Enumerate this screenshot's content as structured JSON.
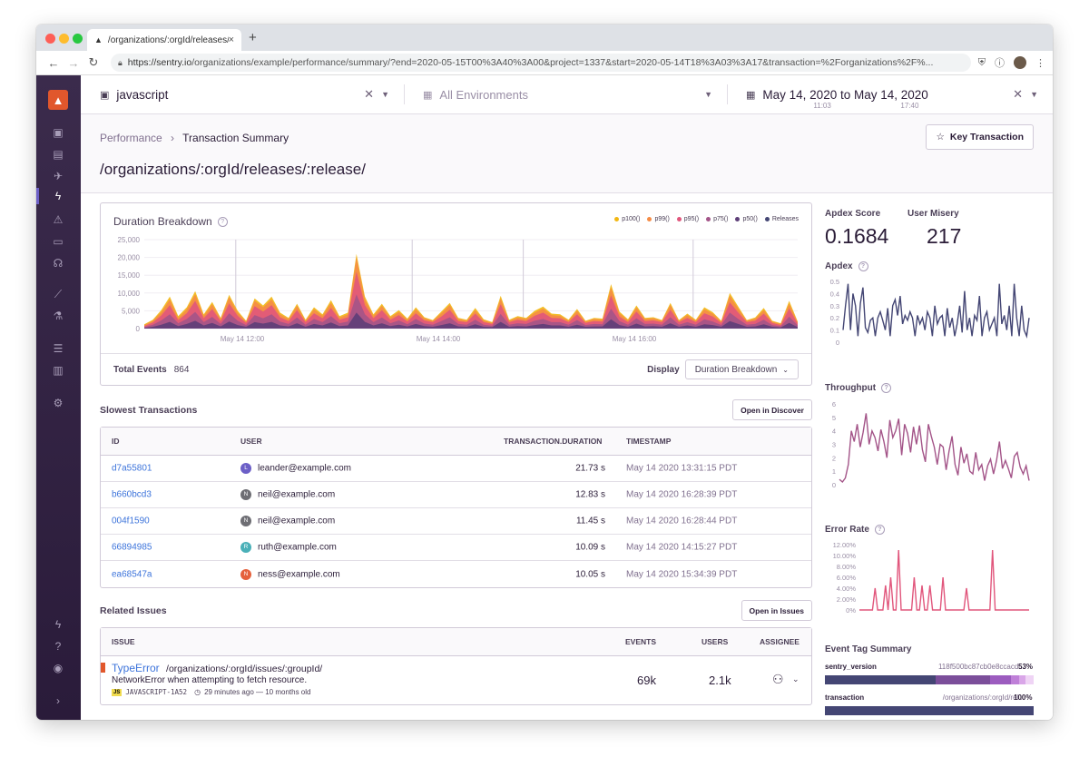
{
  "browser": {
    "tab_title": "/organizations/:orgId/releases/:",
    "url_host": "https://sentry.io",
    "url_path": "/organizations/example/performance/summary/?end=2020-05-15T00%3A40%3A00&project=1337&start=2020-05-14T18%3A03%3A17&transaction=%2Forganizations%2F%..."
  },
  "topbar": {
    "project": "javascript",
    "environment": "All Environments",
    "date_range": "May 14, 2020 to May 14, 2020",
    "time_start": "11:03",
    "time_end": "17:40"
  },
  "header": {
    "crumb_root": "Performance",
    "crumb_current": "Transaction Summary",
    "title": "/organizations/:orgId/releases/:release/",
    "key_button": "Key Transaction"
  },
  "duration_panel": {
    "title": "Duration Breakdown",
    "legend": [
      {
        "name": "p100()",
        "color": "#f2b712"
      },
      {
        "name": "p99()",
        "color": "#f58c46"
      },
      {
        "name": "p95()",
        "color": "#e1567c"
      },
      {
        "name": "p75()",
        "color": "#a35488"
      },
      {
        "name": "p50()",
        "color": "#5d3e78"
      },
      {
        "name": "Releases",
        "color": "#444674"
      }
    ],
    "total_events_label": "Total Events",
    "total_events_value": "864",
    "display_label": "Display",
    "display_value": "Duration Breakdown"
  },
  "chart_data": [
    {
      "type": "area",
      "title": "Duration Breakdown",
      "xlabel": "",
      "ylabel": "",
      "ylim": [
        0,
        25000
      ],
      "y_ticks": [
        "25,000",
        "20,000",
        "15,000",
        "10,000",
        "5,000",
        "0"
      ],
      "x_ticks": [
        "May 14 12:00",
        "May 14 14:00",
        "May 14 16:00"
      ],
      "series": [
        {
          "name": "p100()",
          "values": [
            1200,
            2500,
            5200,
            9000,
            3500,
            6000,
            10500,
            4000,
            7500,
            3000,
            9500,
            5000,
            2200,
            8500,
            6500,
            9000,
            4500,
            3000,
            7000,
            2500,
            6000,
            4000,
            8000,
            3500,
            4500,
            21000,
            9000,
            4000,
            7000,
            3500,
            5200,
            2800,
            6000,
            3200,
            2400,
            4800,
            7200,
            3000,
            2500,
            5800,
            2600,
            1800,
            9200,
            2500,
            3500,
            3000,
            5000,
            6200,
            4200,
            4000,
            2500,
            5500,
            2200,
            3000,
            2800,
            12500,
            4800,
            2600,
            6500,
            3000,
            3200,
            2400,
            7200,
            2400,
            4200,
            2500,
            6000,
            4600,
            2200,
            10000,
            6200,
            2400,
            3100,
            5800,
            2200,
            1500,
            7800,
            2000
          ]
        },
        {
          "name": "p99()",
          "values": [
            1000,
            2200,
            4600,
            8200,
            3000,
            5400,
            9600,
            3600,
            6800,
            2700,
            8800,
            4500,
            2000,
            7800,
            6000,
            8200,
            4000,
            2700,
            6400,
            2200,
            5400,
            3600,
            7200,
            3100,
            4000,
            20000,
            8200,
            3600,
            6400,
            3100,
            4700,
            2500,
            5400,
            2900,
            2200,
            4300,
            6600,
            2700,
            2200,
            5200,
            2300,
            1600,
            8400,
            2200,
            3100,
            2700,
            4500,
            5600,
            3800,
            3600,
            2200,
            5000,
            2000,
            2700,
            2500,
            11500,
            4300,
            2300,
            5900,
            2700,
            2900,
            2200,
            6600,
            2200,
            3800,
            2200,
            5400,
            4200,
            2000,
            9200,
            5600,
            2200,
            2800,
            5200,
            2000,
            1300,
            7000,
            1800
          ]
        },
        {
          "name": "p95()",
          "values": [
            700,
            1700,
            3700,
            6600,
            2400,
            4300,
            7800,
            2900,
            5500,
            2100,
            7100,
            3600,
            1600,
            6300,
            4800,
            6600,
            3200,
            2100,
            5200,
            1800,
            4300,
            2900,
            5800,
            2500,
            3200,
            16000,
            6600,
            2900,
            5200,
            2500,
            3800,
            2000,
            4300,
            2300,
            1800,
            3400,
            5300,
            2100,
            1800,
            4200,
            1800,
            1300,
            6800,
            1800,
            2500,
            2100,
            3600,
            4500,
            3000,
            2900,
            1800,
            4000,
            1600,
            2100,
            2000,
            9300,
            3400,
            1800,
            4800,
            2100,
            2300,
            1800,
            5300,
            1800,
            3000,
            1800,
            4300,
            3400,
            1600,
            7400,
            4500,
            1800,
            2200,
            4200,
            1600,
            1000,
            5600,
            1400
          ]
        },
        {
          "name": "p75()",
          "values": [
            400,
            1100,
            2300,
            4000,
            1500,
            2700,
            4700,
            1800,
            3300,
            1300,
            4300,
            2200,
            1000,
            3800,
            2900,
            4000,
            2000,
            1300,
            3100,
            1100,
            2700,
            1800,
            3500,
            1500,
            2000,
            9600,
            4000,
            1800,
            3100,
            1500,
            2300,
            1200,
            2700,
            1400,
            1100,
            2100,
            3200,
            1300,
            1100,
            2500,
            1100,
            800,
            4100,
            1100,
            1500,
            1300,
            2200,
            2700,
            1800,
            1800,
            1100,
            2400,
            1000,
            1300,
            1200,
            5600,
            2100,
            1100,
            2900,
            1300,
            1400,
            1100,
            3200,
            1100,
            1800,
            1100,
            2600,
            2000,
            1000,
            4500,
            2700,
            1100,
            1300,
            2500,
            1000,
            600,
            3400,
            900
          ]
        },
        {
          "name": "p50()",
          "values": [
            200,
            500,
            1100,
            1900,
            700,
            1300,
            2200,
            900,
            1600,
            600,
            2000,
            1000,
            500,
            1800,
            1400,
            1900,
            900,
            600,
            1500,
            500,
            1300,
            900,
            1700,
            700,
            900,
            4500,
            1900,
            900,
            1500,
            700,
            1100,
            600,
            1300,
            700,
            500,
            1000,
            1500,
            600,
            500,
            1200,
            500,
            400,
            1900,
            500,
            700,
            600,
            1000,
            1300,
            900,
            900,
            500,
            1100,
            500,
            600,
            600,
            2600,
            1000,
            500,
            1400,
            600,
            700,
            500,
            1500,
            500,
            900,
            500,
            1200,
            1000,
            500,
            2100,
            1300,
            500,
            600,
            1200,
            500,
            300,
            1600,
            400
          ]
        }
      ]
    },
    {
      "type": "line",
      "title": "Apdex",
      "ylim": [
        0,
        0.5
      ],
      "y_ticks": [
        "0.5",
        "0.4",
        "0.3",
        "0.2",
        "0.1",
        "0"
      ],
      "series": [
        {
          "name": "",
          "values": [
            0.1,
            0.3,
            0.48,
            0.1,
            0.4,
            0.3,
            0.05,
            0.32,
            0.45,
            0.12,
            0.08,
            0.18,
            0.2,
            0.05,
            0.2,
            0.25,
            0.18,
            0.1,
            0.28,
            0.05,
            0.3,
            0.35,
            0.22,
            0.38,
            0.15,
            0.22,
            0.18,
            0.25,
            0.2,
            0.05,
            0.22,
            0.15,
            0.2,
            0.1,
            0.25,
            0.2,
            0.05,
            0.3,
            0.15,
            0.2,
            0.22,
            0.05,
            0.28,
            0.12,
            0.2,
            0.05,
            0.15,
            0.3,
            0.08,
            0.42,
            0.1,
            0.2,
            0.05,
            0.22,
            0.18,
            0.38,
            0.05,
            0.2,
            0.25,
            0.1,
            0.15,
            0.2,
            0.05,
            0.48,
            0.15,
            0.22,
            0.1,
            0.3,
            0.05,
            0.48,
            0.2,
            0.05,
            0.3,
            0.1,
            0.05,
            0.2
          ]
        }
      ],
      "color": "#444674"
    },
    {
      "type": "line",
      "title": "Throughput",
      "ylim": [
        0,
        6
      ],
      "y_ticks": [
        "6",
        "5",
        "4",
        "3",
        "2",
        "1",
        "0"
      ],
      "series": [
        {
          "name": "",
          "values": [
            0.4,
            0.2,
            0.5,
            1.5,
            4.0,
            3.2,
            4.5,
            2.8,
            3.9,
            5.3,
            3.0,
            4.0,
            3.5,
            2.5,
            4.1,
            3.2,
            2.0,
            4.8,
            3.5,
            4.0,
            4.9,
            2.2,
            4.5,
            3.8,
            2.4,
            4.3,
            3.0,
            4.4,
            2.6,
            1.7,
            4.5,
            3.6,
            2.8,
            1.5,
            3.0,
            2.8,
            1.1,
            2.5,
            3.6,
            1.5,
            0.7,
            2.8,
            1.6,
            2.3,
            1.0,
            0.8,
            2.4,
            1.1,
            1.5,
            0.3,
            1.4,
            1.9,
            0.8,
            1.8,
            3.2,
            1.2,
            1.8,
            1.2,
            0.5,
            2.1,
            2.4,
            1.3,
            0.8,
            1.4,
            0.3
          ]
        }
      ],
      "color": "#a35488"
    },
    {
      "type": "line",
      "title": "Error Rate",
      "ylim": [
        0,
        12
      ],
      "y_ticks": [
        "12.00%",
        "10.00%",
        "8.00%",
        "6.00%",
        "4.00%",
        "2.00%",
        "0%"
      ],
      "series": [
        {
          "name": "",
          "values": [
            0,
            0,
            0,
            0,
            0,
            0,
            4,
            0,
            0,
            0,
            4.5,
            0,
            6,
            0,
            0,
            11,
            0,
            0,
            0,
            0,
            0,
            6,
            0,
            0,
            4.5,
            0,
            0,
            4.5,
            0,
            0,
            0,
            0,
            6,
            0,
            0,
            0,
            0,
            0,
            0,
            0,
            0,
            4,
            0,
            0,
            0,
            0,
            0,
            0,
            0,
            0,
            0,
            11,
            0,
            0,
            0,
            0,
            0,
            0,
            0,
            0,
            0,
            0,
            0,
            0,
            0,
            0
          ]
        }
      ],
      "color": "#e1567c"
    }
  ],
  "slowest": {
    "title": "Slowest Transactions",
    "open_button": "Open in Discover",
    "columns": [
      "ID",
      "USER",
      "TRANSACTION.DURATION",
      "TIMESTAMP"
    ],
    "rows": [
      {
        "id": "d7a55801",
        "initial": "L",
        "color": "#6c5fc7",
        "user": "leander@example.com",
        "duration": "21.73 s",
        "timestamp": "May 14 2020 13:31:15 PDT"
      },
      {
        "id": "b660bcd3",
        "initial": "N",
        "color": "#6e6e74",
        "user": "neil@example.com",
        "duration": "12.83 s",
        "timestamp": "May 14 2020 16:28:39 PDT"
      },
      {
        "id": "004f1590",
        "initial": "N",
        "color": "#6e6e74",
        "user": "neil@example.com",
        "duration": "11.45 s",
        "timestamp": "May 14 2020 16:28:44 PDT"
      },
      {
        "id": "66894985",
        "initial": "R",
        "color": "#4ab0b8",
        "user": "ruth@example.com",
        "duration": "10.09 s",
        "timestamp": "May 14 2020 14:15:27 PDT"
      },
      {
        "id": "ea68547a",
        "initial": "N",
        "color": "#e5613c",
        "user": "ness@example.com",
        "duration": "10.05 s",
        "timestamp": "May 14 2020 15:34:39 PDT"
      }
    ]
  },
  "related": {
    "title": "Related Issues",
    "open_button": "Open in Issues",
    "columns": [
      "ISSUE",
      "EVENTS",
      "USERS",
      "ASSIGNEE"
    ],
    "issue": {
      "type": "TypeError",
      "path": "/organizations/:orgId/issues/:groupId/",
      "message": "NetworkError when attempting to fetch resource.",
      "platform_badge": "JS",
      "short_id": "JAVASCRIPT-1A52",
      "age": "29 minutes ago — 10 months old",
      "events": "69k",
      "users": "2.1k"
    }
  },
  "stats": {
    "apdex_label": "Apdex Score",
    "apdex_value": "0.1684",
    "misery_label": "User Misery",
    "misery_value": "217"
  },
  "tags": {
    "title": "Event Tag Summary",
    "items": [
      {
        "key": "sentry_version",
        "value": "118f500bc87cb0e8ccacd...",
        "pct": "53%"
      },
      {
        "key": "transaction",
        "value": "/organizations/:orgId/rel...",
        "pct": "100%"
      }
    ]
  }
}
